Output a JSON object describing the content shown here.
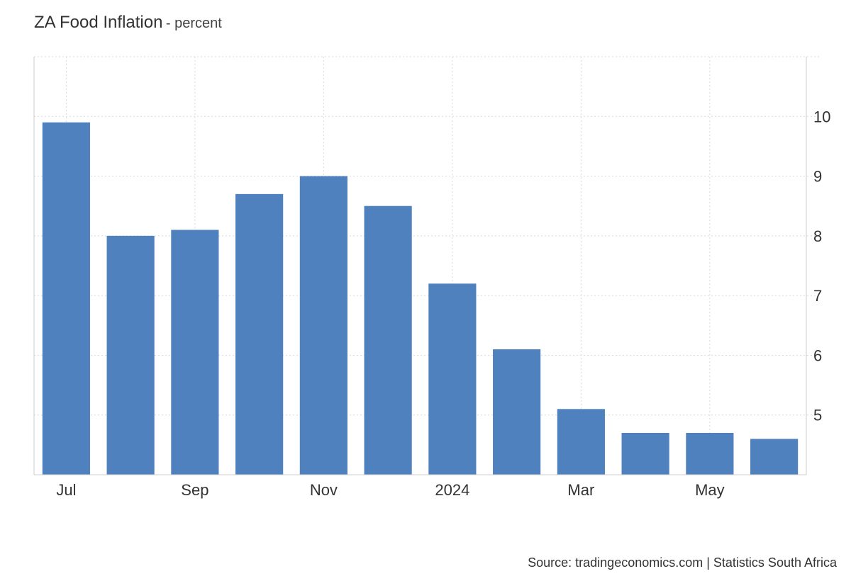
{
  "chart_data": {
    "type": "bar",
    "title": "ZA Food Inflation",
    "unit": "- percent",
    "categories": [
      "Jul 2023",
      "Aug 2023",
      "Sep 2023",
      "Oct 2023",
      "Nov 2023",
      "Dec 2023",
      "Jan 2024",
      "Feb 2024",
      "Mar 2024",
      "Apr 2024",
      "May 2024",
      "Jun 2024"
    ],
    "x_tick_labels": [
      "Jul",
      "Sep",
      "Nov",
      "2024",
      "Mar",
      "May"
    ],
    "x_tick_categories": [
      "Jul 2023",
      "Sep 2023",
      "Nov 2023",
      "Jan 2024",
      "Mar 2024",
      "May 2024"
    ],
    "values": [
      9.9,
      8.0,
      8.1,
      8.7,
      9.0,
      8.5,
      7.2,
      6.1,
      5.1,
      4.7,
      4.7,
      4.6
    ],
    "y_ticks": [
      5,
      6,
      7,
      8,
      9,
      10
    ],
    "ylim": [
      4.0,
      11.0
    ],
    "y_axis_position": "right",
    "grid": true,
    "bar_color": "#4e81bd",
    "source": "Source: tradingeconomics.com | Statistics South Africa"
  }
}
